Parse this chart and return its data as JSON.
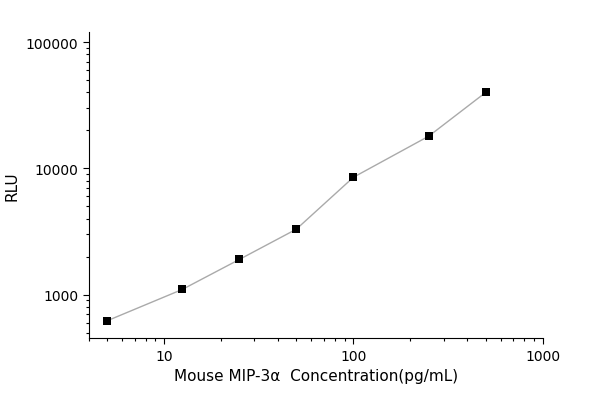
{
  "x": [
    5,
    12.5,
    25,
    50,
    100,
    250,
    500
  ],
  "y": [
    620,
    1100,
    1900,
    3300,
    8500,
    18000,
    40000
  ],
  "xlabel": "Mouse MIP-3α  Concentration(pg/mL)",
  "ylabel": "RLU",
  "xlim": [
    4,
    1000
  ],
  "ylim": [
    450,
    120000
  ],
  "xticks": [
    10,
    100,
    1000
  ],
  "yticks": [
    1000,
    10000,
    100000
  ],
  "ytick_labels": [
    "1000",
    "10000",
    "100000"
  ],
  "xtick_labels": [
    "10",
    "100",
    "1000"
  ],
  "marker": "s",
  "marker_color": "black",
  "marker_size": 6,
  "line_color": "#aaaaaa",
  "line_width": 1.0,
  "background_color": "#ffffff",
  "xlabel_fontsize": 11,
  "ylabel_fontsize": 11,
  "tick_fontsize": 10
}
